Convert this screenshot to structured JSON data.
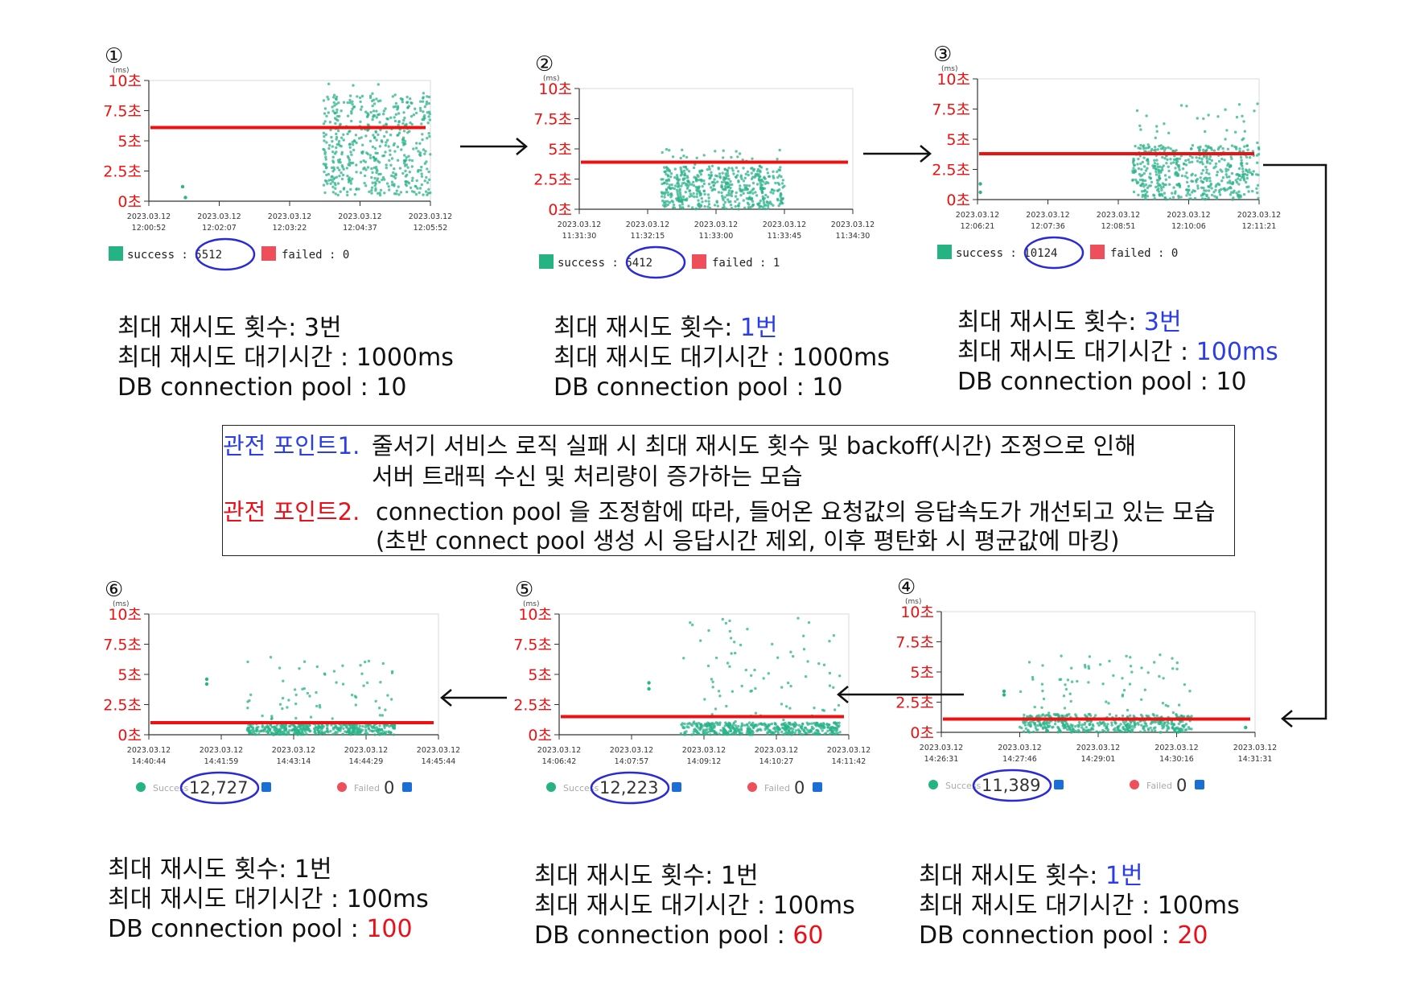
{
  "labels": {
    "ms": "(ms)",
    "success_old": "success :",
    "failed_old": "failed :",
    "success_new": "Success",
    "failed_new": "Failed",
    "success_old_alt": "success",
    "colon": ":"
  },
  "chart_data": [
    {
      "id": "1",
      "number": "①",
      "type": "scatter",
      "y_ticks": [
        "10초",
        "7.5초",
        "5초",
        "2.5초",
        "0초"
      ],
      "ylim": [
        0,
        10
      ],
      "x_ticks": [
        [
          "2023.03.12",
          "12:00:52"
        ],
        [
          "2023.03.12",
          "12:02:07"
        ],
        [
          "2023.03.12",
          "12:03:22"
        ],
        [
          "2023.03.12",
          "12:04:37"
        ],
        [
          "2023.03.12",
          "12:05:52"
        ]
      ],
      "average_line": 6.1,
      "clusters": [
        {
          "from": 0.62,
          "to": 1.0,
          "low": 0.5,
          "high": 8.8,
          "peak": 10
        }
      ],
      "outliers": [
        [
          0.12,
          1.2
        ],
        [
          0.13,
          0.3
        ]
      ],
      "success_count": "5512",
      "failed_count": "0",
      "style": "old"
    },
    {
      "id": "2",
      "number": "②",
      "type": "scatter",
      "y_ticks": [
        "10초",
        "7.5초",
        "5초",
        "2.5초",
        "0초"
      ],
      "ylim": [
        0,
        10
      ],
      "x_ticks": [
        [
          "2023.03.12",
          "11:31:30"
        ],
        [
          "2023.03.12",
          "11:32:15"
        ],
        [
          "2023.03.12",
          "11:33:00"
        ],
        [
          "2023.03.12",
          "11:33:45"
        ],
        [
          "2023.03.12",
          "11:34:30"
        ]
      ],
      "average_line": 3.9,
      "clusters": [
        {
          "from": 0.3,
          "to": 0.75,
          "low": 0.0,
          "high": 3.5,
          "peak": 5
        }
      ],
      "outliers": [],
      "success_count": "6412",
      "failed_count": "1",
      "style": "old"
    },
    {
      "id": "3",
      "number": "③",
      "type": "scatter",
      "y_ticks": [
        "10초",
        "7.5초",
        "5초",
        "2.5초",
        "0초"
      ],
      "ylim": [
        0,
        10
      ],
      "x_ticks": [
        [
          "2023.03.12",
          "12:06:21"
        ],
        [
          "2023.03.12",
          "12:07:36"
        ],
        [
          "2023.03.12",
          "12:08:51"
        ],
        [
          "2023.03.12",
          "12:10:06"
        ],
        [
          "2023.03.12",
          "12:11:21"
        ]
      ],
      "average_line": 3.8,
      "clusters": [
        {
          "from": 0.55,
          "to": 1.0,
          "low": 0.0,
          "high": 4.5,
          "peak": 8
        }
      ],
      "outliers": [
        [
          0.01,
          1.3
        ],
        [
          0.01,
          0.6
        ]
      ],
      "success_count": "10124",
      "failed_count": "0",
      "style": "old"
    },
    {
      "id": "4",
      "number": "④",
      "type": "scatter",
      "y_ticks": [
        "10초",
        "7.5초",
        "5초",
        "2.5초",
        "0초"
      ],
      "ylim": [
        0,
        10
      ],
      "x_ticks": [
        [
          "2023.03.12",
          "14:26:31"
        ],
        [
          "2023.03.12",
          "14:27:46"
        ],
        [
          "2023.03.12",
          "14:29:01"
        ],
        [
          "2023.03.12",
          "14:30:16"
        ],
        [
          "2023.03.12",
          "14:31:31"
        ]
      ],
      "average_line": 1.1,
      "clusters": [
        {
          "from": 0.25,
          "to": 0.8,
          "low": 0.0,
          "high": 1.5,
          "peak": 6.5
        }
      ],
      "outliers": [
        [
          0.2,
          3.4
        ],
        [
          0.2,
          3.1
        ],
        [
          0.97,
          0.4
        ]
      ],
      "success_count": "11,389",
      "failed_count": "0",
      "style": "new"
    },
    {
      "id": "5",
      "number": "⑤",
      "type": "scatter",
      "y_ticks": [
        "10초",
        "7.5초",
        "5초",
        "2.5초",
        "0초"
      ],
      "ylim": [
        0,
        10
      ],
      "x_ticks": [
        [
          "2023.03.12",
          "14:06:42"
        ],
        [
          "2023.03.12",
          "14:07:57"
        ],
        [
          "2023.03.12",
          "14:09:12"
        ],
        [
          "2023.03.12",
          "14:10:27"
        ],
        [
          "2023.03.12",
          "14:11:42"
        ]
      ],
      "average_line": 1.5,
      "clusters": [
        {
          "from": 0.42,
          "to": 0.97,
          "low": 0.0,
          "high": 1.0,
          "peak": 9.8
        }
      ],
      "outliers": [
        [
          0.31,
          4.3
        ],
        [
          0.31,
          3.8
        ]
      ],
      "success_count": "12,223",
      "failed_count": "0",
      "style": "new"
    },
    {
      "id": "6",
      "number": "⑥",
      "type": "scatter",
      "y_ticks": [
        "10초",
        "7.5초",
        "5초",
        "2.5초",
        "0초"
      ],
      "ylim": [
        0,
        10
      ],
      "x_ticks": [
        [
          "2023.03.12",
          "14:40:44"
        ],
        [
          "2023.03.12",
          "14:41:59"
        ],
        [
          "2023.03.12",
          "14:43:14"
        ],
        [
          "2023.03.12",
          "14:44:29"
        ],
        [
          "2023.03.12",
          "14:45:44"
        ]
      ],
      "average_line": 1.0,
      "clusters": [
        {
          "from": 0.34,
          "to": 0.85,
          "low": 0.0,
          "high": 1.0,
          "peak": 6.5
        }
      ],
      "outliers": [
        [
          0.2,
          4.6
        ],
        [
          0.2,
          4.2
        ]
      ],
      "success_count": "12,727",
      "failed_count": "0",
      "style": "new"
    }
  ],
  "configs": [
    {
      "retry_label": "최대 재시도 횟수: ",
      "retry_value": "3번",
      "retry_color": "",
      "wait_label": "최대 재시도 대기시간 : ",
      "wait_value": "1000ms",
      "wait_color": "",
      "pool_label": "DB connection pool : ",
      "pool_value": "10",
      "pool_color": ""
    },
    {
      "retry_label": "최대 재시도 횟수: ",
      "retry_value": "1번",
      "retry_color": "blue",
      "wait_label": "최대 재시도 대기시간 : ",
      "wait_value": "1000ms",
      "wait_color": "",
      "pool_label": "DB connection pool : ",
      "pool_value": "10",
      "pool_color": ""
    },
    {
      "retry_label": "최대 재시도 횟수: ",
      "retry_value": "3번",
      "retry_color": "blue",
      "wait_label": "최대 재시도 대기시간 : ",
      "wait_value": "100ms",
      "wait_color": "blue",
      "pool_label": "DB connection pool : ",
      "pool_value": "10",
      "pool_color": ""
    },
    {
      "retry_label": "최대 재시도 횟수: ",
      "retry_value": "1번",
      "retry_color": "blue",
      "wait_label": "최대 재시도 대기시간 : ",
      "wait_value": "100ms",
      "wait_color": "",
      "pool_label": "DB connection pool : ",
      "pool_value": "20",
      "pool_color": "red"
    },
    {
      "retry_label": "최대 재시도 횟수: ",
      "retry_value": "1번",
      "retry_color": "",
      "wait_label": "최대 재시도 대기시간 : ",
      "wait_value": "100ms",
      "wait_color": "",
      "pool_label": "DB connection pool : ",
      "pool_value": "60",
      "pool_color": "red"
    },
    {
      "retry_label": "최대 재시도 횟수: ",
      "retry_value": "1번",
      "retry_color": "",
      "wait_label": "최대 재시도 대기시간 : ",
      "wait_value": "100ms",
      "wait_color": "",
      "pool_label": "DB connection pool : ",
      "pool_value": "100",
      "pool_color": "red"
    }
  ],
  "observations": {
    "point1_label": "관전 포인트1.",
    "point1_line1": "줄서기 서비스 로직 실패 시 최대 재시도 횟수 및 backoff(시간) 조정으로 인해",
    "point1_line2": "서버 트래픽 수신 및 처리량이 증가하는 모습",
    "point2_label": "관전 포인트2.",
    "point2_line1": "connection pool 을 조정함에 따라, 들어온 요청값의 응답속도가 개선되고 있는 모습",
    "point2_line2": "(초반 connect pool 생성 시 응답시간 제외, 이후 평탄화 시 평균값에 마킹)"
  },
  "colors": {
    "point": "#2bb38a",
    "average_line": "#ee1111",
    "success_box": "#26b383",
    "failed_box": "#ef4f5a",
    "circle": "#2b2bd6",
    "y_tick": "#ee1111",
    "blue_text": "#2b3ee6"
  }
}
